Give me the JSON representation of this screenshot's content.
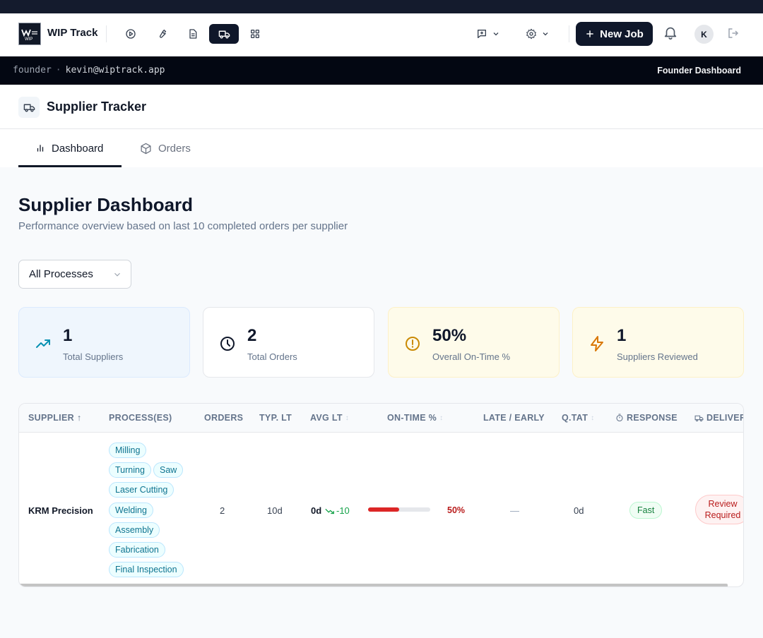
{
  "app": {
    "name": "WIP Track",
    "logo_text": "WIP",
    "new_job_label": "New Job",
    "avatar_initial": "K"
  },
  "userbar": {
    "role": "founder",
    "separator": "·",
    "email": "kevin@wiptrack.app",
    "dashboard_label": "Founder Dashboard"
  },
  "nav_icons": [
    "play-circle-icon",
    "wrench-icon",
    "document-icon",
    "truck-icon",
    "grid-icon"
  ],
  "page": {
    "title": "Supplier Tracker",
    "tabs": [
      {
        "label": "Dashboard",
        "active": true
      },
      {
        "label": "Orders",
        "active": false
      }
    ]
  },
  "dashboard": {
    "title": "Supplier Dashboard",
    "subtitle": "Performance overview based on last 10 completed orders per supplier",
    "filter": {
      "selected": "All Processes"
    }
  },
  "cards": [
    {
      "value": "1",
      "label": "Total Suppliers",
      "icon": "trending-up-icon",
      "accent": "#0891b2"
    },
    {
      "value": "2",
      "label": "Total Orders",
      "icon": "clock-icon",
      "accent": "#0f172a"
    },
    {
      "value": "50%",
      "label": "Overall On-Time %",
      "icon": "alert-circle-icon",
      "accent": "#ca8a04"
    },
    {
      "value": "1",
      "label": "Suppliers Reviewed",
      "icon": "zap-icon",
      "accent": "#d97706"
    }
  ],
  "table": {
    "columns": {
      "supplier": "SUPPLIER",
      "supplier_sort": "↑",
      "processes": "PROCESS(ES)",
      "orders": "ORDERS",
      "typ_lt": "TYP. LT",
      "avg_lt": "AVG LT",
      "on_time": "ON-TIME %",
      "late_early": "LATE / EARLY",
      "qtat": "Q.TAT",
      "response": "RESPONSE",
      "delivery": "DELIVER",
      "sortable_mark": "↕"
    },
    "rows": [
      {
        "supplier": "KRM Precision",
        "processes": [
          "Milling",
          "Turning",
          "Saw",
          "Laser Cutting",
          "Welding",
          "Assembly",
          "Fabrication",
          "Final Inspection"
        ],
        "orders": "2",
        "typ_lt": "10d",
        "avg_lt": "0d",
        "avg_lt_delta": "-10",
        "on_time_pct": "50%",
        "on_time_fraction": 0.5,
        "late_early": "—",
        "qtat": "0d",
        "response": "Fast",
        "delivery_line1": "Review",
        "delivery_line2": "Required"
      }
    ]
  }
}
